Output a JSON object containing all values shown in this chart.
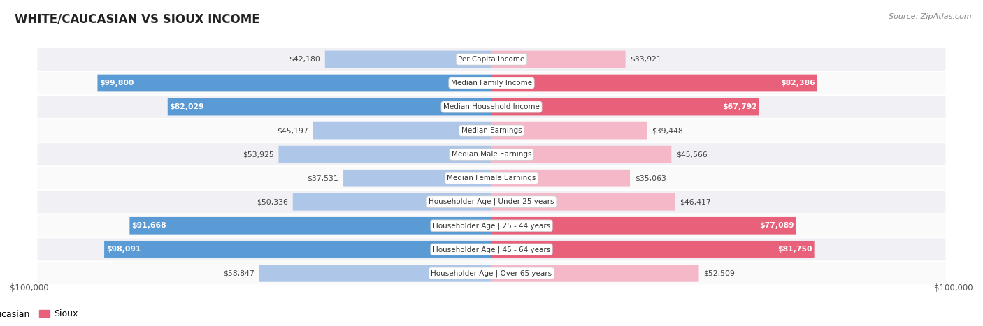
{
  "title": "WHITE/CAUCASIAN VS SIOUX INCOME",
  "source": "Source: ZipAtlas.com",
  "max_value": 100000,
  "categories": [
    "Per Capita Income",
    "Median Family Income",
    "Median Household Income",
    "Median Earnings",
    "Median Male Earnings",
    "Median Female Earnings",
    "Householder Age | Under 25 years",
    "Householder Age | 25 - 44 years",
    "Householder Age | 45 - 64 years",
    "Householder Age | Over 65 years"
  ],
  "white_values": [
    42180,
    99800,
    82029,
    45197,
    53925,
    37531,
    50336,
    91668,
    98091,
    58847
  ],
  "sioux_values": [
    33921,
    82386,
    67792,
    39448,
    45566,
    35063,
    46417,
    77089,
    81750,
    52509
  ],
  "white_color_light": "#aec6e8",
  "white_color_dark": "#5b9bd5",
  "sioux_color_light": "#f4b8c8",
  "sioux_color_dark": "#e8607a",
  "background_color": "#ffffff",
  "row_bg_even": "#f0f0f5",
  "row_bg_odd": "#fafafa",
  "x_axis_label_left": "$100,000",
  "x_axis_label_right": "$100,000",
  "legend_white_label": "White/Caucasian",
  "legend_sioux_label": "Sioux"
}
